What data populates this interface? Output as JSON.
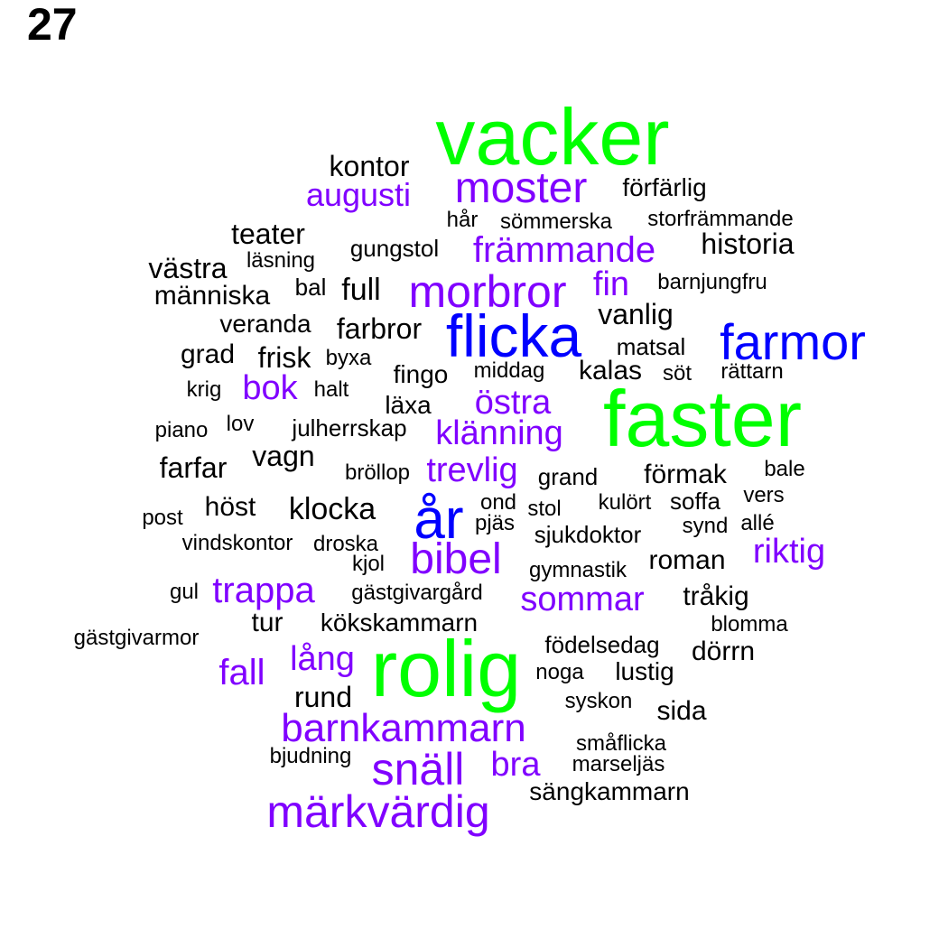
{
  "page_number": "27",
  "colors": {
    "black": "#000000",
    "purple": "#8000ff",
    "blue": "#0000ff",
    "green": "#00ff00"
  },
  "words": [
    {
      "text": "vacker",
      "color": "green"
    },
    {
      "text": "kontor",
      "color": "black"
    },
    {
      "text": "augusti",
      "color": "purple"
    },
    {
      "text": "moster",
      "color": "purple"
    },
    {
      "text": "förfärlig",
      "color": "black"
    },
    {
      "text": "hår",
      "color": "black"
    },
    {
      "text": "sömmerska",
      "color": "black"
    },
    {
      "text": "storfrämmande",
      "color": "black"
    },
    {
      "text": "teater",
      "color": "black"
    },
    {
      "text": "gungstol",
      "color": "black"
    },
    {
      "text": "främmande",
      "color": "purple"
    },
    {
      "text": "historia",
      "color": "black"
    },
    {
      "text": "västra",
      "color": "black"
    },
    {
      "text": "läsning",
      "color": "black"
    },
    {
      "text": "bal",
      "color": "black"
    },
    {
      "text": "full",
      "color": "black"
    },
    {
      "text": "morbror",
      "color": "purple"
    },
    {
      "text": "fin",
      "color": "purple"
    },
    {
      "text": "barnjungfru",
      "color": "black"
    },
    {
      "text": "människa",
      "color": "black"
    },
    {
      "text": "vanlig",
      "color": "black"
    },
    {
      "text": "veranda",
      "color": "black"
    },
    {
      "text": "farbror",
      "color": "black"
    },
    {
      "text": "flicka",
      "color": "blue"
    },
    {
      "text": "farmor",
      "color": "blue"
    },
    {
      "text": "matsal",
      "color": "black"
    },
    {
      "text": "grad",
      "color": "black"
    },
    {
      "text": "frisk",
      "color": "black"
    },
    {
      "text": "byxa",
      "color": "black"
    },
    {
      "text": "fingo",
      "color": "black"
    },
    {
      "text": "middag",
      "color": "black"
    },
    {
      "text": "kalas",
      "color": "black"
    },
    {
      "text": "söt",
      "color": "black"
    },
    {
      "text": "rättarn",
      "color": "black"
    },
    {
      "text": "krig",
      "color": "black"
    },
    {
      "text": "bok",
      "color": "purple"
    },
    {
      "text": "halt",
      "color": "black"
    },
    {
      "text": "läxa",
      "color": "black"
    },
    {
      "text": "östra",
      "color": "purple"
    },
    {
      "text": "faster",
      "color": "green"
    },
    {
      "text": "piano",
      "color": "black"
    },
    {
      "text": "lov",
      "color": "black"
    },
    {
      "text": "julherrskap",
      "color": "black"
    },
    {
      "text": "klänning",
      "color": "purple"
    },
    {
      "text": "farfar",
      "color": "black"
    },
    {
      "text": "vagn",
      "color": "black"
    },
    {
      "text": "bröllop",
      "color": "black"
    },
    {
      "text": "trevlig",
      "color": "purple"
    },
    {
      "text": "grand",
      "color": "black"
    },
    {
      "text": "förmak",
      "color": "black"
    },
    {
      "text": "bale",
      "color": "black"
    },
    {
      "text": "höst",
      "color": "black"
    },
    {
      "text": "klocka",
      "color": "black"
    },
    {
      "text": "år",
      "color": "blue"
    },
    {
      "text": "ond",
      "color": "black"
    },
    {
      "text": "stol",
      "color": "black"
    },
    {
      "text": "kulört",
      "color": "black"
    },
    {
      "text": "soffa",
      "color": "black"
    },
    {
      "text": "vers",
      "color": "black"
    },
    {
      "text": "post",
      "color": "black"
    },
    {
      "text": "pjäs",
      "color": "black"
    },
    {
      "text": "synd",
      "color": "black"
    },
    {
      "text": "allé",
      "color": "black"
    },
    {
      "text": "sjukdoktor",
      "color": "black"
    },
    {
      "text": "vindskontor",
      "color": "black"
    },
    {
      "text": "droska",
      "color": "black"
    },
    {
      "text": "bibel",
      "color": "purple"
    },
    {
      "text": "riktig",
      "color": "purple"
    },
    {
      "text": "kjol",
      "color": "black"
    },
    {
      "text": "roman",
      "color": "black"
    },
    {
      "text": "gymnastik",
      "color": "black"
    },
    {
      "text": "gul",
      "color": "black"
    },
    {
      "text": "trappa",
      "color": "purple"
    },
    {
      "text": "gästgivargård",
      "color": "black"
    },
    {
      "text": "sommar",
      "color": "purple"
    },
    {
      "text": "tråkig",
      "color": "black"
    },
    {
      "text": "tur",
      "color": "black"
    },
    {
      "text": "kökskammarn",
      "color": "black"
    },
    {
      "text": "blomma",
      "color": "black"
    },
    {
      "text": "gästgivarmor",
      "color": "black"
    },
    {
      "text": "födelsedag",
      "color": "black"
    },
    {
      "text": "lång",
      "color": "purple"
    },
    {
      "text": "rolig",
      "color": "green"
    },
    {
      "text": "dörrn",
      "color": "black"
    },
    {
      "text": "fall",
      "color": "purple"
    },
    {
      "text": "noga",
      "color": "black"
    },
    {
      "text": "lustig",
      "color": "black"
    },
    {
      "text": "rund",
      "color": "black"
    },
    {
      "text": "syskon",
      "color": "black"
    },
    {
      "text": "sida",
      "color": "black"
    },
    {
      "text": "barnkammarn",
      "color": "purple"
    },
    {
      "text": "småflicka",
      "color": "black"
    },
    {
      "text": "bjudning",
      "color": "black"
    },
    {
      "text": "snäll",
      "color": "purple"
    },
    {
      "text": "bra",
      "color": "purple"
    },
    {
      "text": "marseljäs",
      "color": "black"
    },
    {
      "text": "sängkammarn",
      "color": "black"
    },
    {
      "text": "märkvärdig",
      "color": "purple"
    }
  ]
}
